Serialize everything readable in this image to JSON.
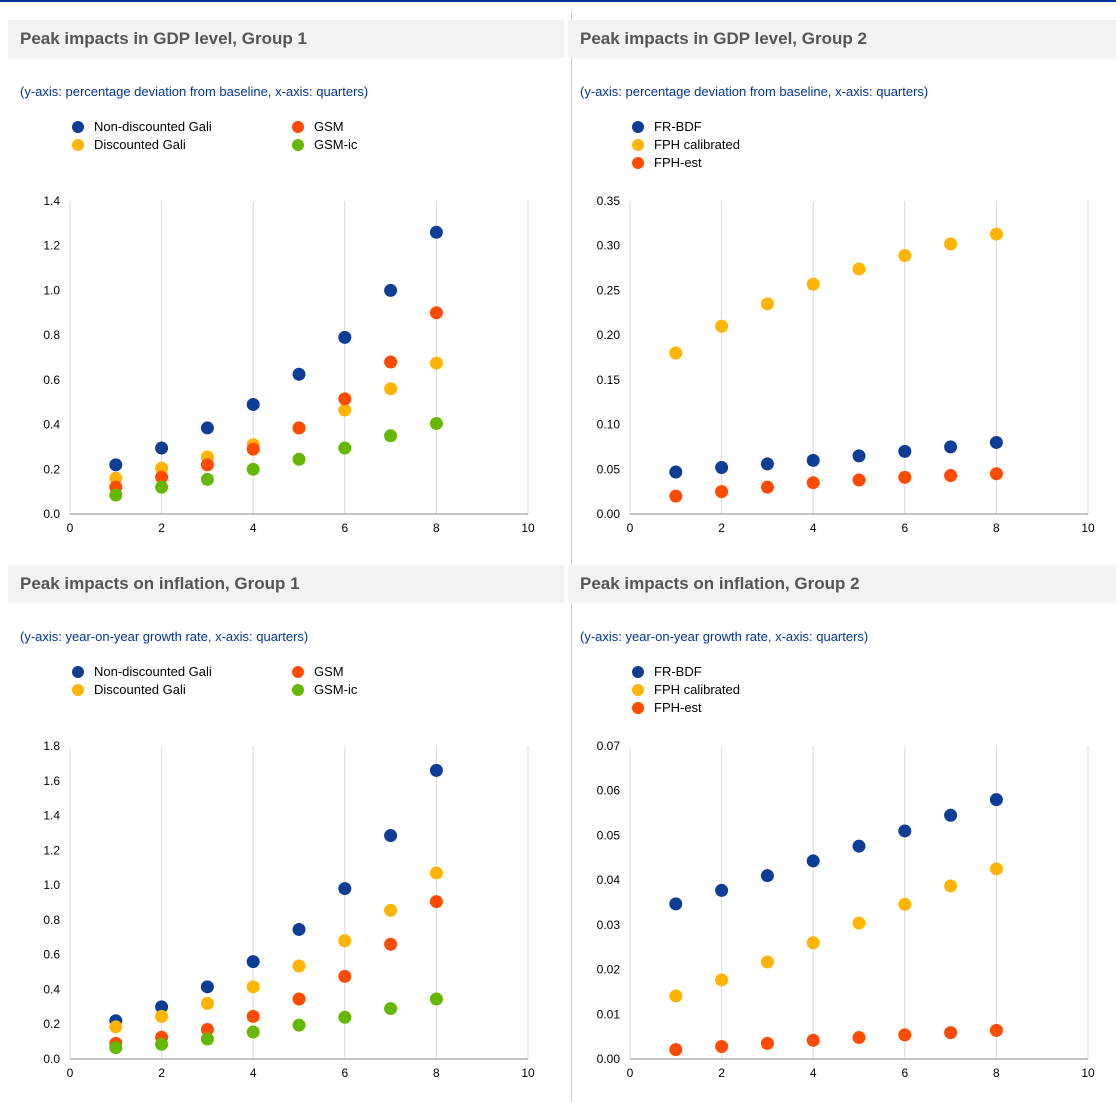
{
  "colors": {
    "blue": "#0e3d96",
    "yellow": "#ffb400",
    "orange": "#ff4b00",
    "green": "#65b800",
    "title_bg": "#f2f2f2",
    "subtitle": "#003399"
  },
  "chart_data": [
    {
      "type": "scatter",
      "title": "Peak impacts in GDP level, Group 1",
      "subtitle": "(y-axis: percentage deviation from baseline, x-axis: quarters)",
      "legend_placement": "top-left, two columns",
      "xlim": [
        0,
        10
      ],
      "ylim": [
        0,
        1.4
      ],
      "xticks": [
        "0",
        "2",
        "4",
        "6",
        "8",
        "10"
      ],
      "yticks": [
        "0.0",
        "0.2",
        "0.4",
        "0.6",
        "0.8",
        "1.0",
        "1.2",
        "1.4"
      ],
      "grid": "vertical",
      "x": [
        1,
        2,
        3,
        4,
        5,
        6,
        7,
        8
      ],
      "series": [
        {
          "name": "Non-discounted Gali",
          "color": "blue",
          "values": [
            0.22,
            0.295,
            0.385,
            0.49,
            0.625,
            0.79,
            1.0,
            1.26
          ]
        },
        {
          "name": "Discounted Gali",
          "color": "yellow",
          "values": [
            0.16,
            0.205,
            0.255,
            0.31,
            0.385,
            0.465,
            0.56,
            0.675
          ]
        },
        {
          "name": "GSM",
          "color": "orange",
          "values": [
            0.12,
            0.165,
            0.22,
            0.29,
            0.385,
            0.515,
            0.68,
            0.9
          ]
        },
        {
          "name": "GSM-ic",
          "color": "green",
          "values": [
            0.085,
            0.12,
            0.155,
            0.2,
            0.245,
            0.295,
            0.35,
            0.405
          ]
        }
      ]
    },
    {
      "type": "scatter",
      "title": "Peak impacts in GDP level, Group 2",
      "subtitle": "(y-axis: percentage deviation from baseline, x-axis: quarters)",
      "legend_placement": "top-left, one column",
      "xlim": [
        0,
        10
      ],
      "ylim": [
        0,
        0.35
      ],
      "xticks": [
        "0",
        "2",
        "4",
        "6",
        "8",
        "10"
      ],
      "yticks": [
        "0.00",
        "0.05",
        "0.10",
        "0.15",
        "0.20",
        "0.25",
        "0.30",
        "0.35"
      ],
      "grid": "vertical",
      "x": [
        1,
        2,
        3,
        4,
        5,
        6,
        7,
        8
      ],
      "series": [
        {
          "name": "FR-BDF",
          "color": "blue",
          "values": [
            0.047,
            0.052,
            0.056,
            0.06,
            0.065,
            0.07,
            0.075,
            0.08
          ]
        },
        {
          "name": "FPH calibrated",
          "color": "yellow",
          "values": [
            0.18,
            0.21,
            0.235,
            0.257,
            0.274,
            0.289,
            0.302,
            0.313
          ]
        },
        {
          "name": "FPH-est",
          "color": "orange",
          "values": [
            0.02,
            0.025,
            0.03,
            0.035,
            0.038,
            0.041,
            0.043,
            0.045
          ]
        }
      ]
    },
    {
      "type": "scatter",
      "title": "Peak impacts on inflation, Group 1",
      "subtitle": "(y-axis: year-on-year growth rate, x-axis: quarters)",
      "legend_placement": "top-left, two columns",
      "xlim": [
        0,
        10
      ],
      "ylim": [
        0,
        1.8
      ],
      "xticks": [
        "0",
        "2",
        "4",
        "6",
        "8",
        "10"
      ],
      "yticks": [
        "0.0",
        "0.2",
        "0.4",
        "0.6",
        "0.8",
        "1.0",
        "1.2",
        "1.4",
        "1.6",
        "1.8"
      ],
      "grid": "vertical",
      "x": [
        1,
        2,
        3,
        4,
        5,
        6,
        7,
        8
      ],
      "series": [
        {
          "name": "Non-discounted Gali",
          "color": "blue",
          "values": [
            0.22,
            0.3,
            0.415,
            0.56,
            0.745,
            0.98,
            1.285,
            1.66
          ]
        },
        {
          "name": "Discounted Gali",
          "color": "yellow",
          "values": [
            0.185,
            0.245,
            0.32,
            0.415,
            0.535,
            0.68,
            0.855,
            1.07
          ]
        },
        {
          "name": "GSM",
          "color": "orange",
          "values": [
            0.09,
            0.125,
            0.17,
            0.245,
            0.345,
            0.475,
            0.66,
            0.905
          ]
        },
        {
          "name": "GSM-ic",
          "color": "green",
          "values": [
            0.065,
            0.085,
            0.115,
            0.155,
            0.195,
            0.24,
            0.29,
            0.345
          ]
        }
      ]
    },
    {
      "type": "scatter",
      "title": "Peak impacts on inflation, Group 2",
      "subtitle": "(y-axis: year-on-year growth rate, x-axis: quarters)",
      "legend_placement": "top-left, one column",
      "xlim": [
        0,
        10
      ],
      "ylim": [
        0,
        0.07
      ],
      "xticks": [
        "0",
        "2",
        "4",
        "6",
        "8",
        "10"
      ],
      "yticks": [
        "0.00",
        "0.01",
        "0.02",
        "0.03",
        "0.04",
        "0.05",
        "0.06",
        "0.07"
      ],
      "grid": "vertical",
      "x": [
        1,
        2,
        3,
        4,
        5,
        6,
        7,
        8
      ],
      "series": [
        {
          "name": "FR-BDF",
          "color": "blue",
          "values": [
            0.0347,
            0.0377,
            0.041,
            0.0443,
            0.0476,
            0.051,
            0.0545,
            0.058
          ]
        },
        {
          "name": "FPH calibrated",
          "color": "yellow",
          "values": [
            0.0141,
            0.0177,
            0.0217,
            0.026,
            0.0304,
            0.0346,
            0.0387,
            0.0425
          ]
        },
        {
          "name": "FPH-est",
          "color": "orange",
          "values": [
            0.0021,
            0.0028,
            0.0035,
            0.0042,
            0.0048,
            0.0054,
            0.0059,
            0.0064
          ]
        }
      ]
    }
  ]
}
